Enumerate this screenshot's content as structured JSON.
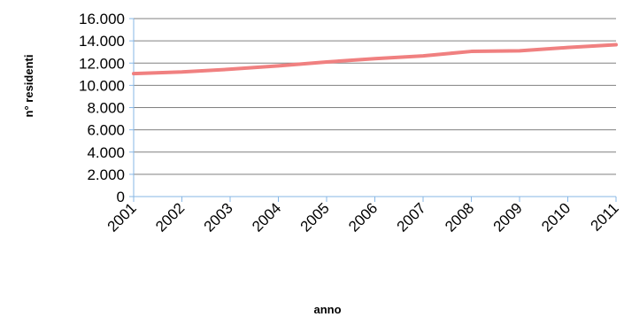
{
  "chart_data": {
    "type": "line",
    "x": [
      "2001",
      "2002",
      "2003",
      "2004",
      "2005",
      "2006",
      "2007",
      "2008",
      "2009",
      "2010",
      "2011"
    ],
    "series": [
      {
        "values": [
          11050,
          11200,
          11450,
          11750,
          12100,
          12400,
          12650,
          13050,
          13100,
          13400,
          13650
        ]
      }
    ],
    "ylim": [
      0,
      16000
    ],
    "y_ticks": [
      "0",
      "2.000",
      "4.000",
      "6.000",
      "8.000",
      "10.000",
      "12.000",
      "14.000",
      "16.000"
    ],
    "xlabel": "anno",
    "ylabel": "n° residenti",
    "grid": true,
    "colors": {
      "line": "#f08080",
      "grid": "#808080",
      "axis": "#87b7e6"
    }
  }
}
